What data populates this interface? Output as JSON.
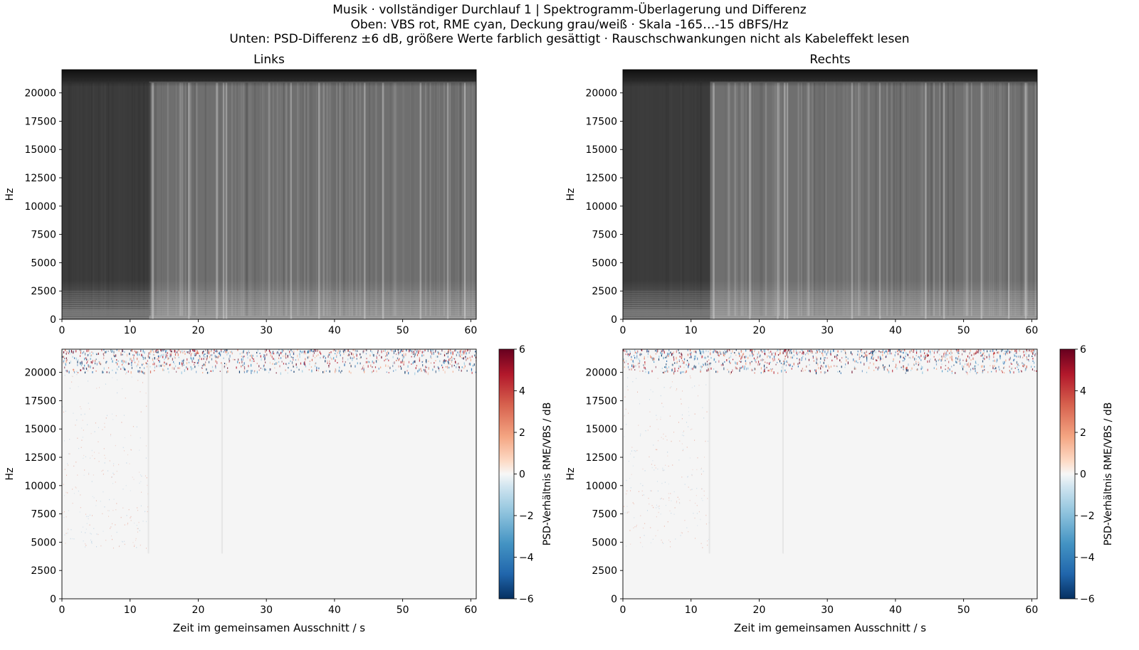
{
  "figure": {
    "title_lines": [
      "Musik · vollständiger Durchlauf 1 | Spektrogramm-Überlagerung und Differenz",
      "Oben: VBS rot, RME cyan, Deckung grau/weiß · Skala -165…-15 dBFS/Hz",
      "Unten: PSD-Differenz ±6 dB, größere Werte farblich gesättigt · Rauschschwankungen nicht als Kabeleffekt lesen"
    ]
  },
  "chart_data": [
    {
      "id": "top-left",
      "type": "heatmap",
      "title": "Links",
      "ylabel": "Hz",
      "xlabel": "",
      "xlim": [
        0,
        60.8
      ],
      "ylim": [
        0,
        22050
      ],
      "xticks": [
        "0",
        "10",
        "20",
        "30",
        "40",
        "50",
        "60"
      ],
      "yticks": [
        "0",
        "2500",
        "5000",
        "7500",
        "10000",
        "12500",
        "15000",
        "17500",
        "20000"
      ],
      "color_scale_dbfs_per_hz": [
        -165,
        -15
      ],
      "overlay_colors": {
        "VBS": "#ff0000",
        "RME": "#00ffff",
        "Deckung": "#bfbfbf"
      },
      "segments_s": [
        [
          0,
          12.8,
          "quiet"
        ],
        [
          12.8,
          23.8,
          "loud"
        ],
        [
          23.8,
          60.8,
          "loud"
        ]
      ],
      "bright_columns_s": [
        13.2,
        18.5,
        22.6,
        23.6,
        24.0,
        33.5,
        37.6,
        44.3,
        47.0,
        52.5,
        56.5,
        59.0
      ]
    },
    {
      "id": "top-right",
      "type": "heatmap",
      "title": "Rechts",
      "ylabel": "Hz",
      "xlabel": "",
      "xlim": [
        0,
        60.8
      ],
      "ylim": [
        0,
        22050
      ],
      "xticks": [
        "0",
        "10",
        "20",
        "30",
        "40",
        "50",
        "60"
      ],
      "yticks": [
        "0",
        "2500",
        "5000",
        "7500",
        "10000",
        "12500",
        "15000",
        "17500",
        "20000"
      ],
      "color_scale_dbfs_per_hz": [
        -165,
        -15
      ],
      "overlay_colors": {
        "VBS": "#ff0000",
        "RME": "#00ffff",
        "Deckung": "#bfbfbf"
      },
      "segments_s": [
        [
          0,
          12.8,
          "quiet"
        ],
        [
          12.8,
          23.8,
          "loud"
        ],
        [
          23.8,
          60.8,
          "loud"
        ]
      ],
      "bright_columns_s": [
        13.2,
        18.5,
        22.6,
        23.6,
        24.0,
        33.5,
        37.6,
        44.3,
        47.0,
        52.5,
        56.5,
        59.0
      ]
    },
    {
      "id": "bottom-left",
      "type": "heatmap",
      "title": "",
      "ylabel": "Hz",
      "xlabel": "Zeit im gemeinsamen Ausschnitt / s",
      "xlim": [
        0,
        60.8
      ],
      "ylim": [
        0,
        22050
      ],
      "xticks": [
        "0",
        "10",
        "20",
        "30",
        "40",
        "50",
        "60"
      ],
      "yticks": [
        "0",
        "2500",
        "5000",
        "7500",
        "10000",
        "12500",
        "15000",
        "17500",
        "20000"
      ],
      "clim_db": [
        -6,
        6
      ],
      "colorbar_label": "PSD-Verhältnis RME/VBS / dB",
      "colorbar_ticks": [
        "6",
        "4",
        "2",
        "0",
        "−2",
        "−4",
        "−6"
      ],
      "noise_band_hz": [
        20500,
        22050
      ],
      "faint_columns_s": [
        12.6,
        23.4
      ]
    },
    {
      "id": "bottom-right",
      "type": "heatmap",
      "title": "",
      "ylabel": "Hz",
      "xlabel": "Zeit im gemeinsamen Ausschnitt / s",
      "xlim": [
        0,
        60.8
      ],
      "ylim": [
        0,
        22050
      ],
      "xticks": [
        "0",
        "10",
        "20",
        "30",
        "40",
        "50",
        "60"
      ],
      "yticks": [
        "0",
        "2500",
        "5000",
        "7500",
        "10000",
        "12500",
        "15000",
        "17500",
        "20000"
      ],
      "clim_db": [
        -6,
        6
      ],
      "colorbar_label": "PSD-Verhältnis RME/VBS / dB",
      "colorbar_ticks": [
        "6",
        "4",
        "2",
        "0",
        "−2",
        "−4",
        "−6"
      ],
      "noise_band_hz": [
        20500,
        22050
      ],
      "faint_columns_s": [
        12.6,
        23.4
      ]
    }
  ]
}
